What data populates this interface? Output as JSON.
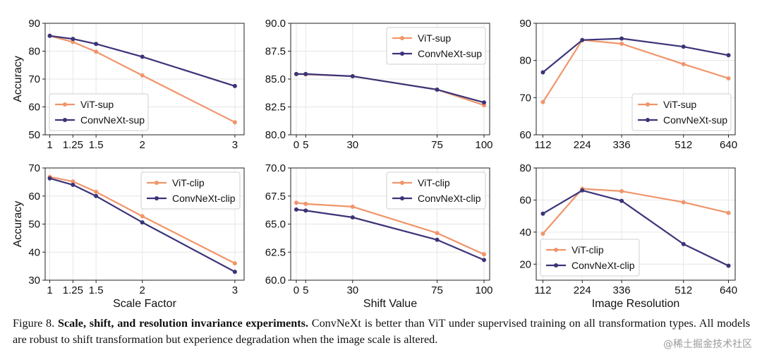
{
  "colors": {
    "vit": "#f0956a",
    "convnext": "#3b3478"
  },
  "chart_data": [
    {
      "type": "line",
      "xlabel": "",
      "ylabel": "Accuracy",
      "x": [
        1,
        1.25,
        1.5,
        2,
        3
      ],
      "xticks": [
        "1",
        "1.25",
        "1.5",
        "2",
        "3"
      ],
      "xlim": [
        0.95,
        3.1
      ],
      "ylim": [
        50,
        90
      ],
      "yticks": [
        "50",
        "60",
        "70",
        "80",
        "90"
      ],
      "legend": "lower-left",
      "grid": true,
      "series": [
        {
          "name": "ViT-sup",
          "values": [
            85.5,
            83.3,
            79.8,
            71.3,
            54.5
          ]
        },
        {
          "name": "ConvNeXt-sup",
          "values": [
            85.5,
            84.4,
            82.6,
            78.0,
            67.5
          ]
        }
      ]
    },
    {
      "type": "line",
      "xlabel": "",
      "ylabel": "",
      "x": [
        0,
        5,
        30,
        75,
        100
      ],
      "xticks": [
        "0",
        "5",
        "30",
        "75",
        "100"
      ],
      "xlim": [
        -3,
        103
      ],
      "ylim": [
        80,
        90
      ],
      "yticks": [
        "80.0",
        "82.5",
        "85.0",
        "87.5",
        "90.0"
      ],
      "legend": "upper-right",
      "grid": true,
      "series": [
        {
          "name": "ViT-sup",
          "values": [
            85.45,
            85.42,
            85.25,
            84.05,
            82.65
          ]
        },
        {
          "name": "ConvNeXt-sup",
          "values": [
            85.45,
            85.45,
            85.25,
            84.05,
            82.9
          ]
        }
      ]
    },
    {
      "type": "line",
      "xlabel": "",
      "ylabel": "",
      "x": [
        112,
        224,
        336,
        512,
        640
      ],
      "xticks": [
        "112",
        "224",
        "336",
        "512",
        "640"
      ],
      "xlim": [
        93,
        659
      ],
      "ylim": [
        60,
        90
      ],
      "yticks": [
        "60",
        "70",
        "80",
        "90"
      ],
      "legend": "lower-right",
      "grid": true,
      "series": [
        {
          "name": "ViT-sup",
          "values": [
            68.8,
            85.5,
            84.5,
            79.0,
            75.2
          ]
        },
        {
          "name": "ConvNeXt-sup",
          "values": [
            76.8,
            85.5,
            85.9,
            83.7,
            81.4
          ]
        }
      ]
    },
    {
      "type": "line",
      "xlabel": "Scale Factor",
      "ylabel": "Accuracy",
      "x": [
        1,
        1.25,
        1.5,
        2,
        3
      ],
      "xticks": [
        "1",
        "1.25",
        "1.5",
        "2",
        "3"
      ],
      "xlim": [
        0.95,
        3.1
      ],
      "ylim": [
        30,
        70
      ],
      "yticks": [
        "30",
        "40",
        "50",
        "60",
        "70"
      ],
      "legend": "upper-right",
      "grid": true,
      "series": [
        {
          "name": "ViT-clip",
          "values": [
            66.8,
            65.2,
            61.5,
            52.8,
            36.0
          ]
        },
        {
          "name": "ConvNeXt-clip",
          "values": [
            66.3,
            64.0,
            60.0,
            50.6,
            33.0
          ]
        }
      ]
    },
    {
      "type": "line",
      "xlabel": "Shift Value",
      "ylabel": "",
      "x": [
        0,
        5,
        30,
        75,
        100
      ],
      "xticks": [
        "0",
        "5",
        "30",
        "75",
        "100"
      ],
      "xlim": [
        -3,
        103
      ],
      "ylim": [
        60,
        70
      ],
      "yticks": [
        "60.0",
        "62.5",
        "65.0",
        "67.5",
        "70.0"
      ],
      "legend": "upper-right",
      "grid": true,
      "series": [
        {
          "name": "ViT-clip",
          "values": [
            66.9,
            66.8,
            66.55,
            64.2,
            62.3
          ]
        },
        {
          "name": "ConvNeXt-clip",
          "values": [
            66.3,
            66.2,
            65.6,
            63.6,
            61.8
          ]
        }
      ]
    },
    {
      "type": "line",
      "xlabel": "Image Resolution",
      "ylabel": "",
      "x": [
        112,
        224,
        336,
        512,
        640
      ],
      "xticks": [
        "112",
        "224",
        "336",
        "512",
        "640"
      ],
      "xlim": [
        93,
        659
      ],
      "ylim": [
        10,
        80
      ],
      "yticks": [
        "20",
        "40",
        "60",
        "80"
      ],
      "legend": "lower-left",
      "grid": true,
      "series": [
        {
          "name": "ViT-clip",
          "values": [
            39.0,
            67.0,
            65.5,
            58.6,
            52.0
          ]
        },
        {
          "name": "ConvNeXt-clip",
          "values": [
            51.5,
            66.0,
            59.5,
            32.5,
            19.0
          ]
        }
      ]
    }
  ],
  "caption": {
    "label": "Figure 8. ",
    "bold": "Scale, shift, and resolution invariance experiments.",
    "text": " ConvNeXt is better than ViT under supervised training on all transformation types. All models are robust to shift transformation but experience degradation when the image scale is altered."
  },
  "watermark": "@稀土掘金技术社区"
}
